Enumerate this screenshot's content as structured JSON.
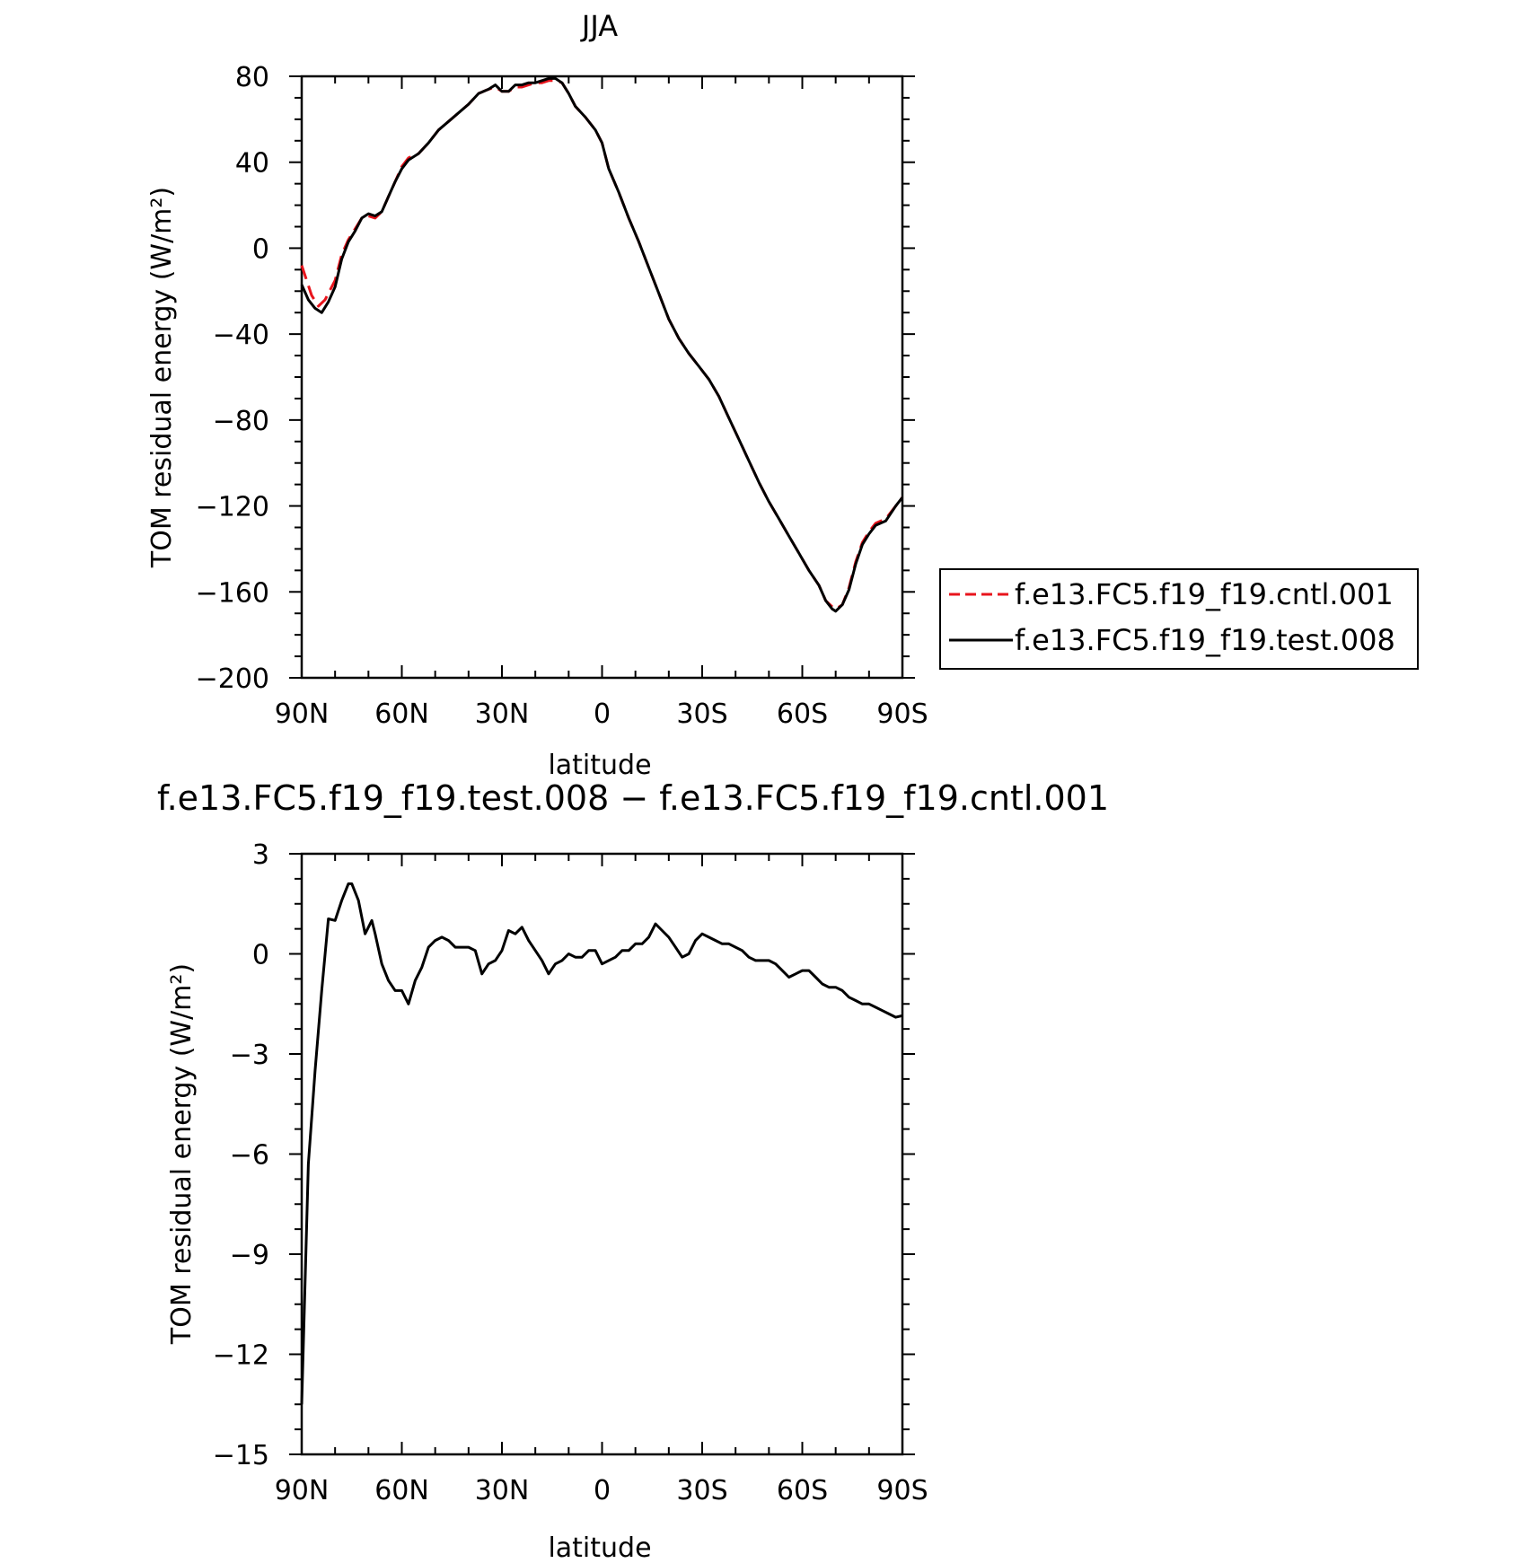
{
  "chart_data": [
    {
      "type": "line",
      "title": "JJA",
      "xlabel": "latitude",
      "ylabel": "TOM residual energy (W/m²)",
      "ylim": [
        -200,
        80
      ],
      "xlim": [
        90,
        -90
      ],
      "x_ticks": [
        {
          "value": 90,
          "label": "90N"
        },
        {
          "value": 60,
          "label": "60N"
        },
        {
          "value": 30,
          "label": "30N"
        },
        {
          "value": 0,
          "label": "0"
        },
        {
          "value": -30,
          "label": "30S"
        },
        {
          "value": -60,
          "label": "60S"
        },
        {
          "value": -90,
          "label": "90S"
        }
      ],
      "y_ticks": [
        {
          "value": 80,
          "label": "80"
        },
        {
          "value": 40,
          "label": "40"
        },
        {
          "value": 0,
          "label": "0"
        },
        {
          "value": -40,
          "label": "−40"
        },
        {
          "value": -80,
          "label": "−80"
        },
        {
          "value": -120,
          "label": "−120"
        },
        {
          "value": -160,
          "label": "−160"
        },
        {
          "value": -200,
          "label": "−200"
        }
      ],
      "grid": false,
      "legend": "right",
      "series": [
        {
          "name": "f.e13.FC5.f19_f19.cntl.001",
          "color": "#e8141c",
          "dash": "dashed",
          "points": [
            [
              90,
              -8
            ],
            [
              87,
              -22
            ],
            [
              85,
              -27
            ],
            [
              83,
              -24
            ],
            [
              80,
              -15
            ],
            [
              78,
              -3
            ],
            [
              76,
              4
            ],
            [
              74,
              9
            ],
            [
              72,
              14
            ],
            [
              70,
              15
            ],
            [
              68,
              14
            ],
            [
              66,
              17
            ],
            [
              64,
              24
            ],
            [
              62,
              31
            ],
            [
              60,
              38
            ],
            [
              58,
              42
            ],
            [
              55,
              44
            ],
            [
              52,
              49
            ],
            [
              49,
              55
            ],
            [
              46,
              59
            ],
            [
              43,
              63
            ],
            [
              40,
              67
            ],
            [
              37,
              72
            ],
            [
              34,
              74
            ],
            [
              32,
              75
            ],
            [
              30,
              73
            ],
            [
              28,
              73
            ],
            [
              26,
              75
            ],
            [
              24,
              75
            ],
            [
              22,
              76
            ],
            [
              20,
              77
            ],
            [
              18,
              77
            ],
            [
              16,
              78
            ],
            [
              14,
              78
            ],
            [
              12,
              77
            ],
            [
              10,
              72
            ],
            [
              8,
              66
            ],
            [
              5,
              61
            ],
            [
              2,
              55
            ],
            [
              0,
              49
            ],
            [
              -2,
              37
            ],
            [
              -5,
              26
            ],
            [
              -8,
              14
            ],
            [
              -11,
              3
            ],
            [
              -14,
              -9
            ],
            [
              -17,
              -21
            ],
            [
              -20,
              -33
            ],
            [
              -23,
              -42
            ],
            [
              -26,
              -49
            ],
            [
              -29,
              -55
            ],
            [
              -32,
              -61
            ],
            [
              -35,
              -69
            ],
            [
              -38,
              -79
            ],
            [
              -41,
              -89
            ],
            [
              -44,
              -99
            ],
            [
              -47,
              -109
            ],
            [
              -50,
              -118
            ],
            [
              -53,
              -126
            ],
            [
              -56,
              -134
            ],
            [
              -59,
              -142
            ],
            [
              -62,
              -150
            ],
            [
              -65,
              -157
            ],
            [
              -67,
              -164
            ],
            [
              -69,
              -167
            ],
            [
              -70,
              -168
            ],
            [
              -72,
              -166
            ],
            [
              -74,
              -158
            ],
            [
              -76,
              -146
            ],
            [
              -78,
              -137
            ],
            [
              -80,
              -132
            ],
            [
              -82,
              -128
            ],
            [
              -85,
              -126
            ],
            [
              -88,
              -120
            ],
            [
              -90,
              -116
            ]
          ]
        },
        {
          "name": "f.e13.FC5.f19_f19.test.008",
          "color": "#000000",
          "dash": "solid",
          "points": [
            [
              90,
              -17
            ],
            [
              88,
              -24
            ],
            [
              86,
              -28
            ],
            [
              84,
              -30
            ],
            [
              82,
              -25
            ],
            [
              80,
              -18
            ],
            [
              78,
              -5
            ],
            [
              76,
              3
            ],
            [
              74,
              8
            ],
            [
              72,
              14
            ],
            [
              70,
              16
            ],
            [
              68,
              15
            ],
            [
              66,
              17
            ],
            [
              64,
              24
            ],
            [
              62,
              31
            ],
            [
              60,
              37
            ],
            [
              58,
              41
            ],
            [
              55,
              44
            ],
            [
              52,
              49
            ],
            [
              49,
              55
            ],
            [
              46,
              59
            ],
            [
              43,
              63
            ],
            [
              40,
              67
            ],
            [
              37,
              72
            ],
            [
              34,
              74
            ],
            [
              32,
              76
            ],
            [
              30,
              73
            ],
            [
              28,
              73
            ],
            [
              26,
              76
            ],
            [
              24,
              76
            ],
            [
              22,
              77
            ],
            [
              20,
              77
            ],
            [
              18,
              78
            ],
            [
              16,
              79
            ],
            [
              14,
              79
            ],
            [
              12,
              77
            ],
            [
              10,
              72
            ],
            [
              8,
              66
            ],
            [
              5,
              61
            ],
            [
              2,
              55
            ],
            [
              0,
              49
            ],
            [
              -2,
              37
            ],
            [
              -5,
              26
            ],
            [
              -8,
              14
            ],
            [
              -11,
              3
            ],
            [
              -14,
              -9
            ],
            [
              -17,
              -21
            ],
            [
              -20,
              -33
            ],
            [
              -23,
              -42
            ],
            [
              -26,
              -49
            ],
            [
              -29,
              -55
            ],
            [
              -32,
              -61
            ],
            [
              -35,
              -69
            ],
            [
              -38,
              -79
            ],
            [
              -41,
              -89
            ],
            [
              -44,
              -99
            ],
            [
              -47,
              -109
            ],
            [
              -50,
              -118
            ],
            [
              -53,
              -126
            ],
            [
              -56,
              -134
            ],
            [
              -59,
              -142
            ],
            [
              -62,
              -150
            ],
            [
              -65,
              -157
            ],
            [
              -67,
              -164
            ],
            [
              -69,
              -168
            ],
            [
              -70,
              -169
            ],
            [
              -72,
              -166
            ],
            [
              -74,
              -159
            ],
            [
              -76,
              -147
            ],
            [
              -78,
              -138
            ],
            [
              -80,
              -133
            ],
            [
              -82,
              -129
            ],
            [
              -85,
              -127
            ],
            [
              -88,
              -120
            ],
            [
              -90,
              -116
            ]
          ]
        }
      ]
    },
    {
      "type": "line",
      "title": "f.e13.FC5.f19_f19.test.008 − f.e13.FC5.f19_f19.cntl.001",
      "xlabel": "latitude",
      "ylabel": "TOM residual energy (W/m²)",
      "ylim": [
        -15,
        3
      ],
      "xlim": [
        90,
        -90
      ],
      "x_ticks": [
        {
          "value": 90,
          "label": "90N"
        },
        {
          "value": 60,
          "label": "60N"
        },
        {
          "value": 30,
          "label": "30N"
        },
        {
          "value": 0,
          "label": "0"
        },
        {
          "value": -30,
          "label": "30S"
        },
        {
          "value": -60,
          "label": "60S"
        },
        {
          "value": -90,
          "label": "90S"
        }
      ],
      "y_ticks": [
        {
          "value": 3,
          "label": "3"
        },
        {
          "value": 0,
          "label": "0"
        },
        {
          "value": -3,
          "label": "−3"
        },
        {
          "value": -6,
          "label": "−6"
        },
        {
          "value": -9,
          "label": "−9"
        },
        {
          "value": -12,
          "label": "−12"
        },
        {
          "value": -15,
          "label": "−15"
        }
      ],
      "grid": false,
      "series": [
        {
          "color": "#000000",
          "dash": "solid",
          "points": [
            [
              90,
              -13.5
            ],
            [
              88,
              -6.3
            ],
            [
              86,
              -3.5
            ],
            [
              84,
              -1.1
            ],
            [
              82,
              1.05
            ],
            [
              80,
              1.0
            ],
            [
              78,
              1.6
            ],
            [
              76,
              2.1
            ],
            [
              75,
              2.1
            ],
            [
              73,
              1.6
            ],
            [
              71,
              0.6
            ],
            [
              69,
              1.0
            ],
            [
              68,
              0.6
            ],
            [
              66,
              -0.3
            ],
            [
              64,
              -0.8
            ],
            [
              62,
              -1.1
            ],
            [
              60,
              -1.1
            ],
            [
              58,
              -1.5
            ],
            [
              56,
              -0.8
            ],
            [
              54,
              -0.4
            ],
            [
              52,
              0.2
            ],
            [
              50,
              0.4
            ],
            [
              48,
              0.5
            ],
            [
              46,
              0.4
            ],
            [
              44,
              0.2
            ],
            [
              42,
              0.2
            ],
            [
              40,
              0.2
            ],
            [
              38,
              0.1
            ],
            [
              36,
              -0.6
            ],
            [
              34,
              -0.3
            ],
            [
              32,
              -0.2
            ],
            [
              30,
              0.1
            ],
            [
              28,
              0.7
            ],
            [
              26,
              0.6
            ],
            [
              24,
              0.8
            ],
            [
              22,
              0.4
            ],
            [
              20,
              0.1
            ],
            [
              18,
              -0.2
            ],
            [
              16,
              -0.6
            ],
            [
              14,
              -0.3
            ],
            [
              12,
              -0.2
            ],
            [
              10,
              0.0
            ],
            [
              8,
              -0.1
            ],
            [
              6,
              -0.1
            ],
            [
              4,
              0.1
            ],
            [
              2,
              0.1
            ],
            [
              0,
              -0.3
            ],
            [
              -2,
              -0.2
            ],
            [
              -4,
              -0.1
            ],
            [
              -6,
              0.1
            ],
            [
              -8,
              0.1
            ],
            [
              -10,
              0.3
            ],
            [
              -12,
              0.3
            ],
            [
              -14,
              0.5
            ],
            [
              -16,
              0.9
            ],
            [
              -18,
              0.7
            ],
            [
              -20,
              0.5
            ],
            [
              -22,
              0.2
            ],
            [
              -24,
              -0.1
            ],
            [
              -26,
              0.0
            ],
            [
              -28,
              0.4
            ],
            [
              -30,
              0.6
            ],
            [
              -32,
              0.5
            ],
            [
              -34,
              0.4
            ],
            [
              -36,
              0.3
            ],
            [
              -38,
              0.3
            ],
            [
              -40,
              0.2
            ],
            [
              -42,
              0.1
            ],
            [
              -44,
              -0.1
            ],
            [
              -46,
              -0.2
            ],
            [
              -48,
              -0.2
            ],
            [
              -50,
              -0.2
            ],
            [
              -52,
              -0.3
            ],
            [
              -54,
              -0.5
            ],
            [
              -56,
              -0.7
            ],
            [
              -58,
              -0.6
            ],
            [
              -60,
              -0.5
            ],
            [
              -62,
              -0.5
            ],
            [
              -64,
              -0.7
            ],
            [
              -66,
              -0.9
            ],
            [
              -68,
              -1.0
            ],
            [
              -70,
              -1.0
            ],
            [
              -72,
              -1.1
            ],
            [
              -74,
              -1.3
            ],
            [
              -76,
              -1.4
            ],
            [
              -78,
              -1.5
            ],
            [
              -80,
              -1.5
            ],
            [
              -82,
              -1.6
            ],
            [
              -84,
              -1.7
            ],
            [
              -86,
              -1.8
            ],
            [
              -88,
              -1.9
            ],
            [
              -90,
              -1.85
            ]
          ]
        }
      ]
    }
  ]
}
